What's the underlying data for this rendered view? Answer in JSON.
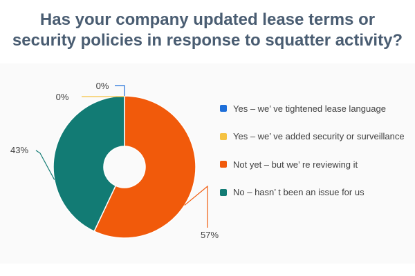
{
  "title_lines": [
    "Has your company updated lease terms or",
    "security policies in response to squatter activity?"
  ],
  "chart_data": {
    "type": "pie",
    "variant": "donut",
    "title": "Has your company updated lease terms or security policies in response to squatter activity?",
    "categories": [
      "Yes – we’ ve tightened lease language",
      "Yes – we’ ve added security or surveillance",
      "Not yet – but we’ re reviewing it",
      "No – hasn’ t been an issue for us"
    ],
    "values": [
      0,
      0,
      57,
      43
    ],
    "unit": "%",
    "data_labels": [
      "0%",
      "0%",
      "57%",
      "43%"
    ],
    "colors": [
      "#1e6fd9",
      "#f5c242",
      "#f15a0b",
      "#127b74"
    ],
    "legend_position": "right"
  }
}
